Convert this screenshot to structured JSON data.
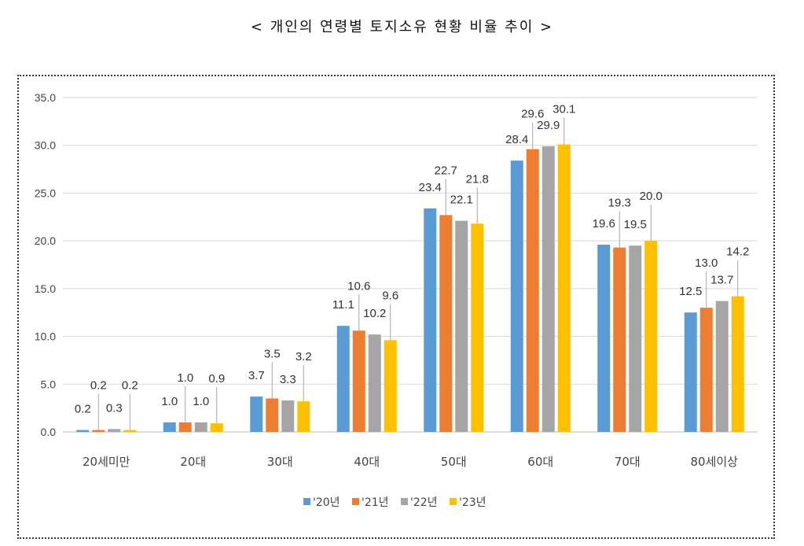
{
  "title": "< 개인의 연령별 토지소유 현황 비율 추이 >",
  "colors": {
    "s20": "#5b9bd5",
    "s21": "#ed7d31",
    "s22": "#a5a5a5",
    "s23": "#ffc000"
  },
  "chart_data": {
    "type": "bar",
    "title": "< 개인의 연령별 토지소유 현황 비율 추이 >",
    "xlabel": "",
    "ylabel": "",
    "ylim": [
      0,
      35
    ],
    "yticks": [
      "0.0",
      "5.0",
      "10.0",
      "15.0",
      "20.0",
      "25.0",
      "30.0",
      "35.0"
    ],
    "grid": true,
    "legend_position": "bottom",
    "categories": [
      "20세미만",
      "20대",
      "30대",
      "40대",
      "50대",
      "60대",
      "70대",
      "80세이상"
    ],
    "series": [
      {
        "name": "'20년",
        "values": [
          0.2,
          1.0,
          3.7,
          11.1,
          23.4,
          28.4,
          19.6,
          12.5
        ]
      },
      {
        "name": "'21년",
        "values": [
          0.2,
          1.0,
          3.5,
          10.6,
          22.7,
          29.6,
          19.3,
          13.0
        ]
      },
      {
        "name": "'22년",
        "values": [
          0.3,
          1.0,
          3.3,
          10.2,
          22.1,
          29.9,
          19.5,
          13.7
        ]
      },
      {
        "name": "'23년",
        "values": [
          0.2,
          0.9,
          3.2,
          9.6,
          21.8,
          30.1,
          20.0,
          14.2
        ]
      }
    ]
  }
}
